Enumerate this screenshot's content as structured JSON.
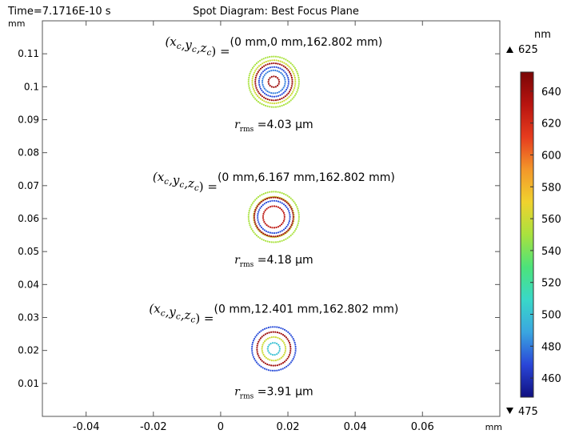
{
  "header": {
    "time_label": "Time=7.1716E-10 s",
    "title": "Spot Diagram: Best Focus Plane"
  },
  "chart_data": {
    "type": "scatter",
    "title": "Spot Diagram: Best Focus Plane",
    "xlabel": "mm",
    "ylabel": "mm",
    "xlim": [
      -0.053,
      0.083
    ],
    "ylim": [
      0.0,
      0.12
    ],
    "grid": false,
    "x_ticks": [
      -0.04,
      -0.02,
      0,
      0.02,
      0.04,
      0.06
    ],
    "x_tick_labels": [
      "-0.04",
      "-0.02",
      "0",
      "0.02",
      "0.04",
      "0.06"
    ],
    "y_ticks": [
      0.01,
      0.02,
      0.03,
      0.04,
      0.05,
      0.06,
      0.07,
      0.08,
      0.09,
      0.1,
      0.11
    ],
    "y_tick_labels": [
      "0.01",
      "0.02",
      "0.03",
      "0.04",
      "0.05",
      "0.06",
      "0.07",
      "0.08",
      "0.09",
      "0.1",
      "0.11"
    ],
    "spots": [
      {
        "center_label": "(0 mm,0 mm,162.802 mm)",
        "rms_value": "4.03 µm",
        "center": [
          0.0158,
          0.1015
        ],
        "rings": [
          {
            "wavelength_nm": 550,
            "radius": 0.0075
          },
          {
            "wavelength_nm": 560,
            "radius": 0.0064
          },
          {
            "wavelength_nm": 640,
            "radius": 0.0055
          },
          {
            "wavelength_nm": 470,
            "radius": 0.0044
          },
          {
            "wavelength_nm": 480,
            "radius": 0.0034
          },
          {
            "wavelength_nm": 640,
            "radius": 0.0016
          }
        ]
      },
      {
        "center_label": "(0 mm,6.167 mm,162.802 mm)",
        "rms_value": "4.18 µm",
        "center": [
          0.0158,
          0.0605
        ],
        "rings": [
          {
            "wavelength_nm": 550,
            "radius": 0.0075
          },
          {
            "wavelength_nm": 560,
            "radius": 0.006
          },
          {
            "wavelength_nm": 470,
            "radius": 0.0048
          },
          {
            "wavelength_nm": 640,
            "radius": 0.0058
          },
          {
            "wavelength_nm": 630,
            "radius": 0.0032
          }
        ]
      },
      {
        "center_label": "(0 mm,12.401 mm,162.802 mm)",
        "rms_value": "3.91 µm",
        "center": [
          0.0158,
          0.0205
        ],
        "rings": [
          {
            "wavelength_nm": 560,
            "radius": 0.0035
          },
          {
            "wavelength_nm": 640,
            "radius": 0.005
          },
          {
            "wavelength_nm": 470,
            "radius": 0.0065
          },
          {
            "wavelength_nm": 500,
            "radius": 0.0018
          }
        ]
      }
    ],
    "colorbar": {
      "unit": "nm",
      "max_label": "625",
      "min_label": "475",
      "range": [
        448,
        652
      ],
      "ticks": [
        460,
        480,
        500,
        520,
        540,
        560,
        580,
        600,
        620,
        640
      ],
      "tick_labels": [
        "460",
        "480",
        "500",
        "520",
        "540",
        "560",
        "580",
        "600",
        "620",
        "640"
      ],
      "colormap": [
        "#101080",
        "#2a46d8",
        "#3aa6e0",
        "#39d8c8",
        "#4ce37a",
        "#a9e23e",
        "#f0d22e",
        "#f3972a",
        "#e63c1e",
        "#b81410",
        "#7a0606"
      ]
    }
  }
}
